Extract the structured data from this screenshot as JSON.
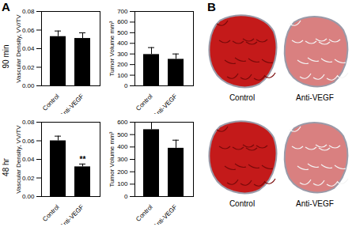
{
  "panel_labels": [
    "A",
    "B"
  ],
  "row_labels": [
    "90 min",
    "48 hr"
  ],
  "chart_data": [
    {
      "type": "bar",
      "categories": [
        "Control",
        "Anti-VEGF"
      ],
      "values": [
        0.053,
        0.051
      ],
      "errors": [
        0.006,
        0.006
      ],
      "color": "#000000",
      "ylabel": "Vascular Density, VV/TV",
      "ylim": [
        0,
        0.08
      ],
      "yticks": [
        {
          "value": 0,
          "label": "0.00"
        },
        {
          "value": 0.02,
          "label": "0.02"
        },
        {
          "value": 0.04,
          "label": "0.04"
        },
        {
          "value": 0.06,
          "label": "0.06"
        },
        {
          "value": 0.08,
          "label": "0.08"
        }
      ]
    },
    {
      "type": "bar",
      "categories": [
        "Control",
        "Anti-VEGF"
      ],
      "values": [
        295,
        250
      ],
      "errors": [
        65,
        50
      ],
      "color": "#000000",
      "ylabel": "Tumor Volume mm³",
      "ylim": [
        0,
        700
      ],
      "yticks": [
        0,
        100,
        200,
        300,
        400,
        500,
        600,
        700
      ]
    },
    {
      "type": "bar",
      "categories": [
        "Control",
        "Anti-VEGF"
      ],
      "values": [
        0.06,
        0.032
      ],
      "errors": [
        0.005,
        0.003
      ],
      "color": "#000000",
      "ylabel": "Vascular Density, VV/TV",
      "ylim": [
        0,
        0.08
      ],
      "yticks": [
        {
          "value": 0,
          "label": "0.00"
        },
        {
          "value": 0.02,
          "label": "0.02"
        },
        {
          "value": 0.04,
          "label": "0.04"
        },
        {
          "value": 0.06,
          "label": "0.06"
        },
        {
          "value": 0.08,
          "label": "0.08"
        }
      ],
      "annotations": [
        {
          "category": "Anti-VEGF",
          "text": "**"
        }
      ]
    },
    {
      "type": "bar",
      "categories": [
        "Control",
        "Anti-VEGF"
      ],
      "values": [
        540,
        390
      ],
      "errors": [
        65,
        65
      ],
      "color": "#000000",
      "ylabel": "Tumor Volume mm³",
      "ylim": [
        0,
        600
      ],
      "yticks": [
        0,
        100,
        200,
        300,
        400,
        500,
        600
      ]
    }
  ],
  "images": {
    "labels": [
      [
        "Control",
        "Anti-VEGF"
      ],
      [
        "Control",
        "Anti-VEGF"
      ]
    ]
  }
}
